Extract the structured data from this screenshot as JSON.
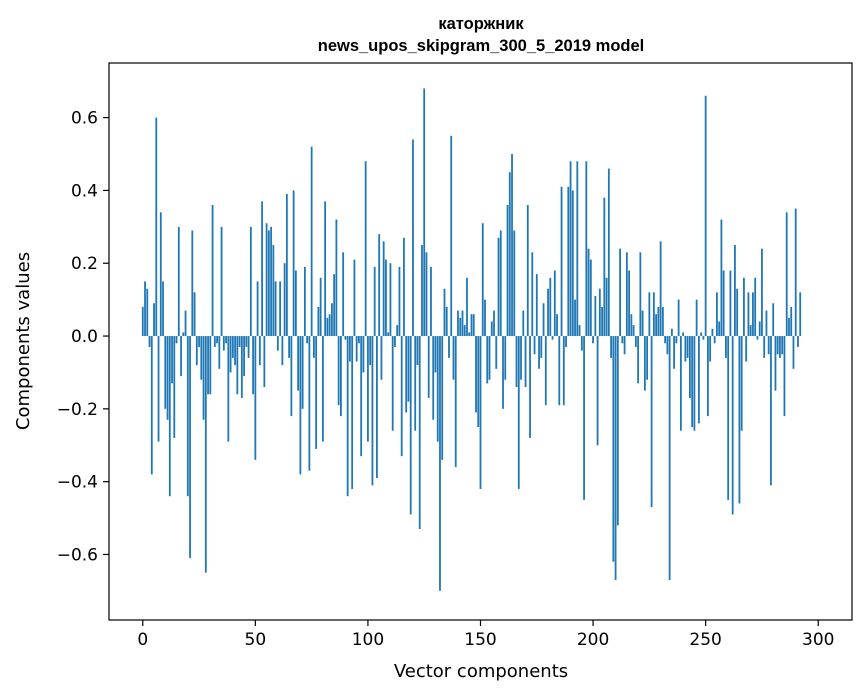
{
  "chart_data": {
    "type": "bar",
    "title_line1": "каторжник",
    "title_line2": "news_upos_skipgram_300_5_2019 model",
    "xlabel": "Vector components",
    "ylabel": "Components values",
    "xlim": [
      -15,
      315
    ],
    "ylim": [
      -0.78,
      0.75
    ],
    "xticks": [
      0,
      50,
      100,
      150,
      200,
      250,
      300
    ],
    "xtick_labels": [
      "0",
      "50",
      "100",
      "150",
      "200",
      "250",
      "300"
    ],
    "yticks": [
      -0.6,
      -0.4,
      -0.2,
      0.0,
      0.2,
      0.4,
      0.6
    ],
    "ytick_labels": [
      "−0.6",
      "−0.4",
      "−0.2",
      "0.0",
      "0.2",
      "0.4",
      "0.6"
    ],
    "bar_color": "#1f77b4",
    "values": [
      0.08,
      0.15,
      0.13,
      -0.03,
      -0.38,
      0.09,
      0.6,
      -0.29,
      0.34,
      0.15,
      -0.2,
      -0.23,
      -0.44,
      -0.13,
      -0.28,
      -0.02,
      0.3,
      -0.11,
      0.01,
      0.07,
      -0.44,
      -0.61,
      0.29,
      0.12,
      -0.08,
      -0.03,
      -0.12,
      -0.23,
      -0.65,
      -0.16,
      -0.16,
      0.36,
      -0.03,
      -0.02,
      -0.09,
      0.3,
      -0.04,
      -0.02,
      -0.29,
      -0.1,
      -0.06,
      -0.08,
      -0.16,
      -0.03,
      -0.17,
      -0.11,
      -0.03,
      -0.06,
      0.3,
      -0.16,
      -0.34,
      0.15,
      -0.08,
      0.37,
      -0.14,
      0.31,
      0.29,
      0.3,
      0.25,
      0.15,
      -0.04,
      0.15,
      -0.08,
      0.2,
      0.39,
      -0.06,
      -0.22,
      0.4,
      0.18,
      -0.15,
      -0.38,
      -0.2,
      0.19,
      -0.02,
      -0.37,
      0.52,
      -0.06,
      -0.31,
      0.08,
      0.16,
      -0.29,
      0.37,
      0.05,
      0.06,
      0.09,
      0.17,
      0.32,
      -0.19,
      -0.22,
      0.23,
      -0.01,
      -0.44,
      -0.07,
      -0.42,
      0.21,
      -0.07,
      -0.02,
      -0.33,
      -0.1,
      0.48,
      -0.29,
      -0.08,
      -0.41,
      0.19,
      -0.39,
      0.28,
      -0.12,
      0.26,
      0.21,
      0.01,
      0.2,
      -0.26,
      -0.03,
      0.03,
      0.19,
      -0.33,
      0.27,
      -0.21,
      -0.18,
      -0.49,
      0.54,
      -0.26,
      -0.08,
      -0.53,
      0.25,
      0.68,
      0.23,
      -0.17,
      0.19,
      -0.23,
      -0.1,
      -0.29,
      -0.7,
      -0.34,
      0.13,
      0.08,
      -0.06,
      0.55,
      -0.12,
      -0.36,
      0.07,
      0.05,
      0.07,
      0.03,
      0.16,
      0.01,
      0.06,
      0.06,
      -0.21,
      -0.25,
      -0.42,
      0.31,
      0.1,
      -0.13,
      -0.12,
      0.04,
      0.07,
      -0.09,
      0.27,
      0.29,
      -0.2,
      -0.12,
      0.36,
      0.45,
      0.5,
      0.29,
      -0.14,
      -0.42,
      -0.12,
      0.07,
      -0.14,
      0.36,
      -0.28,
      0.23,
      -0.05,
      0.17,
      -0.09,
      -0.06,
      0.09,
      -0.19,
      0.13,
      0.16,
      -0.01,
      0.18,
      0.06,
      -0.19,
      0.41,
      -0.19,
      -0.03,
      0.41,
      0.48,
      0.4,
      0.1,
      0.48,
      0.03,
      -0.04,
      -0.45,
      0.48,
      0.24,
      0.21,
      -0.02,
      0.11,
      -0.3,
      0.13,
      0.08,
      0.38,
      0.16,
      0.46,
      -0.06,
      -0.62,
      -0.67,
      -0.52,
      0.24,
      -0.02,
      -0.05,
      0.23,
      0.18,
      0.06,
      0.03,
      -0.03,
      -0.13,
      0.23,
      0.07,
      -0.15,
      -0.12,
      0.12,
      -0.47,
      0.12,
      0.06,
      0.08,
      0.26,
      0.08,
      -0.02,
      -0.05,
      -0.67,
      0.02,
      -0.09,
      -0.02,
      0.1,
      -0.26,
      0.01,
      -0.07,
      -0.06,
      -0.17,
      -0.25,
      -0.26,
      0.1,
      -0.24,
      0.01,
      -0.01,
      0.66,
      -0.22,
      -0.07,
      0.02,
      -0.02,
      0.12,
      0.04,
      0.32,
      0.18,
      -0.06,
      -0.45,
      0.18,
      -0.49,
      0.25,
      0.13,
      -0.46,
      -0.26,
      0.16,
      -0.07,
      0.12,
      0.03,
      0.12,
      0.16,
      -0.01,
      0.04,
      0.24,
      -0.06,
      0.07,
      -0.05,
      -0.41,
      0.09,
      -0.15,
      -0.05,
      -0.06,
      -0.05,
      -0.22,
      0.34,
      0.05,
      0.08,
      -0.09,
      0.35,
      -0.03,
      0.12
    ]
  }
}
